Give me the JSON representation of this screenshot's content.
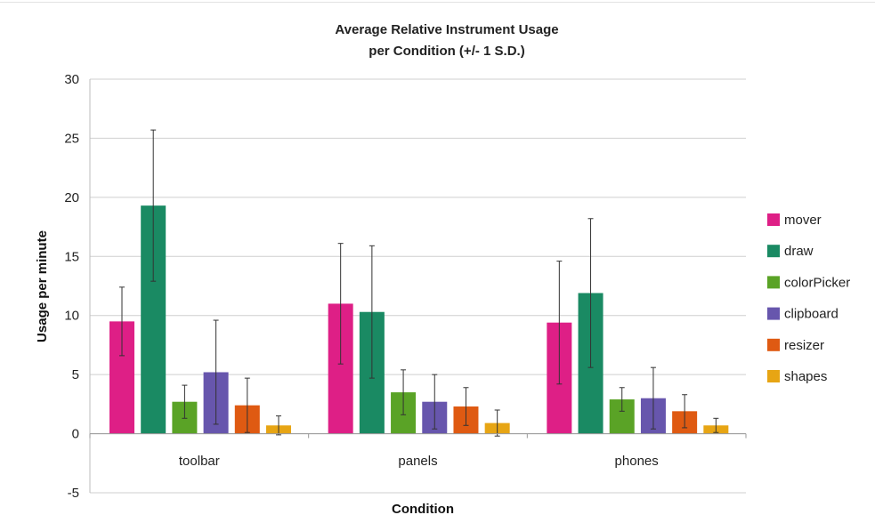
{
  "chart_data": {
    "type": "bar",
    "title_line1": "Average Relative Instrument Usage",
    "title_line2": "per Condition (+/- 1 S.D.)",
    "xlabel": "Condition",
    "ylabel": "Usage per minute",
    "ylim": [
      -5,
      30
    ],
    "yticks": [
      -5,
      0,
      5,
      10,
      15,
      20,
      25,
      30
    ],
    "ytick_labels": [
      "-5",
      "0",
      "5",
      "10",
      "15",
      "20",
      "25",
      "30"
    ],
    "grid": true,
    "legend_position": "right",
    "categories": [
      "toolbar",
      "panels",
      "phones"
    ],
    "series": [
      {
        "name": "mover",
        "color": "#de1f86",
        "values": [
          9.5,
          11.0,
          9.4
        ],
        "sd": [
          2.9,
          5.1,
          5.2
        ]
      },
      {
        "name": "draw",
        "color": "#1a8a63",
        "values": [
          19.3,
          10.3,
          11.9
        ],
        "sd": [
          6.4,
          5.6,
          6.3
        ]
      },
      {
        "name": "colorPicker",
        "color": "#5aa326",
        "values": [
          2.7,
          3.5,
          2.9
        ],
        "sd": [
          1.4,
          1.9,
          1.0
        ]
      },
      {
        "name": "clipboard",
        "color": "#6756ad",
        "values": [
          5.2,
          2.7,
          3.0
        ],
        "sd": [
          4.4,
          2.3,
          2.6
        ]
      },
      {
        "name": "resizer",
        "color": "#df5a12",
        "values": [
          2.4,
          2.3,
          1.9
        ],
        "sd": [
          2.3,
          1.6,
          1.4
        ]
      },
      {
        "name": "shapes",
        "color": "#e7a514",
        "values": [
          0.7,
          0.9,
          0.7
        ],
        "sd": [
          0.8,
          1.1,
          0.6
        ]
      }
    ]
  }
}
